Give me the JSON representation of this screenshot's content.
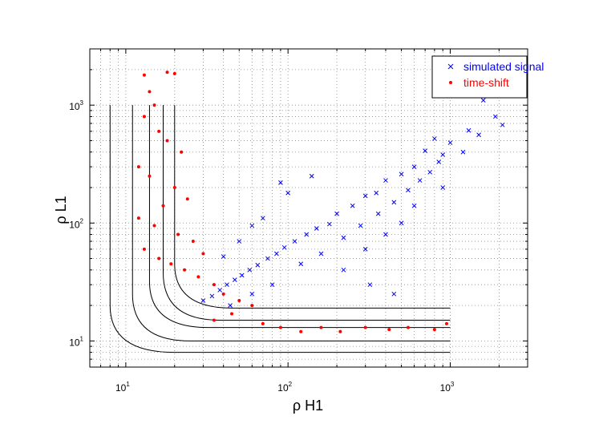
{
  "chart_data": {
    "type": "scatter",
    "xscale": "log",
    "yscale": "log",
    "xlim": [
      6,
      3000
    ],
    "ylim": [
      6,
      3000
    ],
    "xlabel": "ρ H1",
    "ylabel": "ρ L1",
    "x_ticks": [
      {
        "base": "10",
        "exp": "1",
        "value": 10
      },
      {
        "base": "10",
        "exp": "2",
        "value": 100
      },
      {
        "base": "10",
        "exp": "3",
        "value": 1000
      }
    ],
    "y_ticks": [
      {
        "base": "10",
        "exp": "1",
        "value": 10
      },
      {
        "base": "10",
        "exp": "2",
        "value": 100
      },
      {
        "base": "10",
        "exp": "3",
        "value": 1000
      }
    ],
    "grid": true,
    "legend_position": "top-right",
    "colors": {
      "simulated": "#0000ff",
      "timeshift": "#ff0000",
      "contour": "#000000"
    },
    "series": [
      {
        "name": "simulated signal",
        "marker": "x",
        "color": "#0000ff",
        "points": [
          [
            1600,
            1100
          ],
          [
            1900,
            800
          ],
          [
            2100,
            680
          ],
          [
            1300,
            610
          ],
          [
            1000,
            480
          ],
          [
            1500,
            560
          ],
          [
            800,
            520
          ],
          [
            700,
            410
          ],
          [
            900,
            380
          ],
          [
            600,
            300
          ],
          [
            500,
            260
          ],
          [
            400,
            230
          ],
          [
            350,
            180
          ],
          [
            300,
            170
          ],
          [
            250,
            140
          ],
          [
            200,
            120
          ],
          [
            180,
            98
          ],
          [
            150,
            90
          ],
          [
            130,
            80
          ],
          [
            110,
            70
          ],
          [
            95,
            62
          ],
          [
            85,
            55
          ],
          [
            75,
            50
          ],
          [
            65,
            44
          ],
          [
            58,
            40
          ],
          [
            52,
            36
          ],
          [
            47,
            33
          ],
          [
            42,
            30
          ],
          [
            38,
            27
          ],
          [
            34,
            24
          ],
          [
            30,
            22
          ],
          [
            44,
            20
          ],
          [
            60,
            25
          ],
          [
            80,
            30
          ],
          [
            120,
            45
          ],
          [
            160,
            55
          ],
          [
            220,
            75
          ],
          [
            280,
            95
          ],
          [
            360,
            120
          ],
          [
            450,
            150
          ],
          [
            550,
            190
          ],
          [
            650,
            230
          ],
          [
            750,
            270
          ],
          [
            850,
            330
          ],
          [
            1200,
            400
          ],
          [
            100,
            180
          ],
          [
            90,
            220
          ],
          [
            140,
            250
          ],
          [
            70,
            110
          ],
          [
            60,
            95
          ],
          [
            50,
            70
          ],
          [
            40,
            52
          ],
          [
            300,
            60
          ],
          [
            400,
            80
          ],
          [
            500,
            100
          ],
          [
            220,
            40
          ],
          [
            320,
            30
          ],
          [
            450,
            25
          ],
          [
            600,
            140
          ],
          [
            900,
            200
          ]
        ]
      },
      {
        "name": "time-shift",
        "marker": "dot",
        "color": "#ff0000",
        "points": [
          [
            13,
            1800
          ],
          [
            18,
            1900
          ],
          [
            20,
            1850
          ],
          [
            14,
            1300
          ],
          [
            15,
            1000
          ],
          [
            13,
            800
          ],
          [
            16,
            600
          ],
          [
            18,
            500
          ],
          [
            22,
            400
          ],
          [
            12,
            300
          ],
          [
            14,
            250
          ],
          [
            20,
            200
          ],
          [
            24,
            160
          ],
          [
            17,
            140
          ],
          [
            12,
            110
          ],
          [
            15,
            95
          ],
          [
            21,
            80
          ],
          [
            26,
            70
          ],
          [
            30,
            55
          ],
          [
            13,
            60
          ],
          [
            16,
            50
          ],
          [
            19,
            45
          ],
          [
            23,
            40
          ],
          [
            28,
            35
          ],
          [
            35,
            30
          ],
          [
            40,
            25
          ],
          [
            50,
            22
          ],
          [
            60,
            20
          ],
          [
            45,
            17
          ],
          [
            35,
            15
          ],
          [
            70,
            14
          ],
          [
            90,
            13
          ],
          [
            120,
            12
          ],
          [
            160,
            13
          ],
          [
            210,
            12
          ],
          [
            300,
            13
          ],
          [
            420,
            12.5
          ],
          [
            550,
            13
          ],
          [
            800,
            12.5
          ],
          [
            950,
            14
          ]
        ]
      }
    ]
  },
  "legend": {
    "items": [
      {
        "label": "simulated signal",
        "marker": "x",
        "color": "#0000ff"
      },
      {
        "label": "time-shift",
        "marker": "dot",
        "color": "#ff0000"
      }
    ]
  }
}
